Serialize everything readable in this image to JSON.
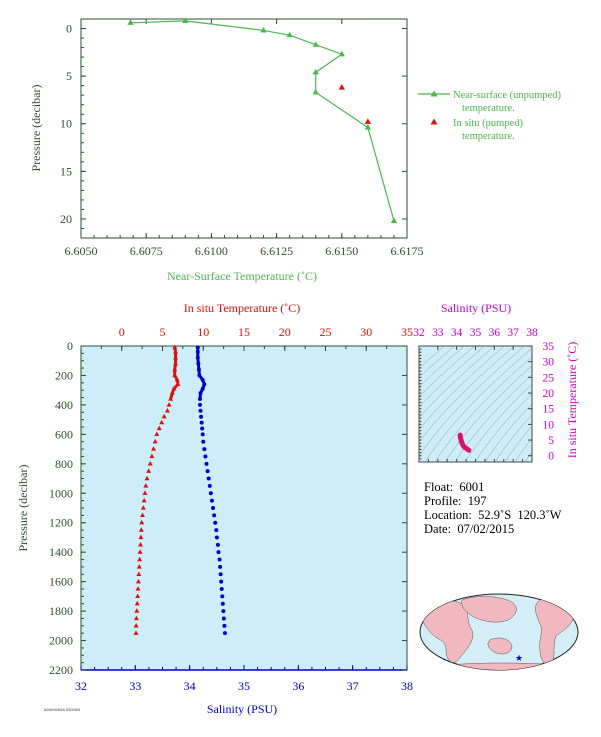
{
  "colors": {
    "near_surface": "#4cb84c",
    "in_situ_temp": "#e01010",
    "salinity": "#0000cc",
    "salinity_axis": "#cc00cc",
    "profile_bg": "#cdeef8",
    "axis_text": "#2f4f2f"
  },
  "chart_data": [
    {
      "type": "line",
      "xlabel": "Near-Surface Temperature (˚C)",
      "ylabel": "Pressure (decibar)",
      "xlim": [
        6.605,
        6.6175
      ],
      "ylim": [
        22,
        -1
      ],
      "x_ticks": [
        "6.6050",
        "6.6075",
        "6.6100",
        "6.6125",
        "6.6150",
        "6.6175"
      ],
      "y_ticks": [
        "0",
        "5",
        "10",
        "15",
        "20"
      ],
      "series": [
        {
          "name": "Near-surface (unpumped) temperature.",
          "marker": "triangle",
          "points": [
            [
              6.6069,
              -0.6
            ],
            [
              6.609,
              -0.8
            ],
            [
              6.612,
              0.2
            ],
            [
              6.613,
              0.7
            ],
            [
              6.614,
              1.7
            ],
            [
              6.615,
              2.7
            ],
            [
              6.614,
              4.6
            ],
            [
              6.614,
              6.7
            ],
            [
              6.616,
              10.4
            ],
            [
              6.617,
              20.2
            ]
          ]
        },
        {
          "name": "In situ (pumped) temperature.",
          "marker": "triangle",
          "points": [
            [
              6.615,
              6.2
            ],
            [
              6.616,
              9.8
            ]
          ]
        }
      ],
      "legend": [
        {
          "line1": "Near-surface (unpumped)",
          "line2": "temperature."
        },
        {
          "line1": "In situ (pumped)",
          "line2": "temperature."
        }
      ]
    },
    {
      "type": "scatter",
      "top_axis_label": "In situ Temperature (˚C)",
      "bottom_axis_label": "Salinity (PSU)",
      "ylabel": "Pressure (decibar)",
      "temp_lim": [
        -5,
        35
      ],
      "sal_lim": [
        32,
        38
      ],
      "ylim": [
        2200,
        0
      ],
      "temp_ticks": [
        "0",
        "5",
        "10",
        "15",
        "20",
        "25",
        "30",
        "35"
      ],
      "sal_ticks": [
        "32",
        "33",
        "34",
        "35",
        "36",
        "37",
        "38"
      ],
      "y_ticks": [
        "0",
        "200",
        "400",
        "600",
        "800",
        "1000",
        "1200",
        "1400",
        "1600",
        "1800",
        "2000",
        "2200"
      ],
      "temperature_profile": [
        [
          6.5,
          10
        ],
        [
          6.6,
          40
        ],
        [
          6.6,
          80
        ],
        [
          6.6,
          120
        ],
        [
          6.5,
          160
        ],
        [
          6.5,
          200
        ],
        [
          6.8,
          230
        ],
        [
          6.9,
          260
        ],
        [
          6.4,
          290
        ],
        [
          6.2,
          320
        ],
        [
          6.0,
          360
        ],
        [
          5.8,
          400
        ],
        [
          5.6,
          440
        ],
        [
          5.2,
          480
        ],
        [
          4.9,
          520
        ],
        [
          4.6,
          560
        ],
        [
          4.3,
          600
        ],
        [
          4.1,
          650
        ],
        [
          3.9,
          700
        ],
        [
          3.7,
          750
        ],
        [
          3.5,
          800
        ],
        [
          3.3,
          850
        ],
        [
          3.1,
          900
        ],
        [
          2.95,
          950
        ],
        [
          2.85,
          1000
        ],
        [
          2.75,
          1050
        ],
        [
          2.65,
          1100
        ],
        [
          2.55,
          1150
        ],
        [
          2.45,
          1200
        ],
        [
          2.4,
          1250
        ],
        [
          2.35,
          1300
        ],
        [
          2.3,
          1350
        ],
        [
          2.25,
          1400
        ],
        [
          2.2,
          1450
        ],
        [
          2.15,
          1500
        ],
        [
          2.1,
          1550
        ],
        [
          2.05,
          1600
        ],
        [
          2.0,
          1650
        ],
        [
          1.95,
          1700
        ],
        [
          1.9,
          1750
        ],
        [
          1.85,
          1800
        ],
        [
          1.8,
          1850
        ],
        [
          1.77,
          1900
        ],
        [
          1.75,
          1950
        ]
      ],
      "salinity_profile": [
        [
          34.15,
          10
        ],
        [
          34.15,
          40
        ],
        [
          34.15,
          80
        ],
        [
          34.16,
          120
        ],
        [
          34.17,
          160
        ],
        [
          34.18,
          200
        ],
        [
          34.24,
          230
        ],
        [
          34.27,
          260
        ],
        [
          34.24,
          290
        ],
        [
          34.2,
          320
        ],
        [
          34.19,
          360
        ],
        [
          34.19,
          400
        ],
        [
          34.2,
          440
        ],
        [
          34.21,
          480
        ],
        [
          34.22,
          520
        ],
        [
          34.23,
          560
        ],
        [
          34.24,
          600
        ],
        [
          34.25,
          650
        ],
        [
          34.27,
          700
        ],
        [
          34.29,
          750
        ],
        [
          34.31,
          800
        ],
        [
          34.33,
          850
        ],
        [
          34.35,
          900
        ],
        [
          34.37,
          950
        ],
        [
          34.39,
          1000
        ],
        [
          34.41,
          1050
        ],
        [
          34.43,
          1100
        ],
        [
          34.45,
          1150
        ],
        [
          34.47,
          1200
        ],
        [
          34.49,
          1250
        ],
        [
          34.5,
          1300
        ],
        [
          34.52,
          1350
        ],
        [
          34.53,
          1400
        ],
        [
          34.55,
          1450
        ],
        [
          34.56,
          1500
        ],
        [
          34.57,
          1550
        ],
        [
          34.58,
          1600
        ],
        [
          34.59,
          1650
        ],
        [
          34.6,
          1700
        ],
        [
          34.61,
          1750
        ],
        [
          34.62,
          1800
        ],
        [
          34.63,
          1850
        ],
        [
          34.64,
          1900
        ],
        [
          34.65,
          1950
        ]
      ]
    },
    {
      "type": "scatter",
      "top_axis_label": "Salinity (PSU)",
      "right_axis_label": "In situ Temperature (˚C)",
      "sal_lim": [
        32,
        38
      ],
      "temp_lim": [
        -2,
        35
      ],
      "sal_ticks": [
        "32",
        "33",
        "34",
        "35",
        "36",
        "37",
        "38"
      ],
      "temp_ticks": [
        "0",
        "5",
        "10",
        "15",
        "20",
        "25",
        "30",
        "35"
      ],
      "ts_points": [
        [
          34.19,
          6.6
        ],
        [
          34.18,
          6.3
        ],
        [
          34.2,
          5.8
        ],
        [
          34.25,
          4.6
        ],
        [
          34.3,
          3.8
        ],
        [
          34.35,
          3.2
        ],
        [
          34.42,
          2.7
        ],
        [
          34.5,
          2.4
        ],
        [
          34.56,
          2.1
        ],
        [
          34.62,
          1.9
        ],
        [
          34.65,
          1.75
        ],
        [
          34.17,
          6.8
        ],
        [
          34.22,
          5.2
        ],
        [
          34.28,
          4.2
        ]
      ]
    }
  ],
  "float_info": {
    "float": "Float:  6001",
    "profile": "Profile:  197",
    "location": "Location:  52.9˚S  120.3˚W",
    "date": "Date:  07/02/2015"
  },
  "footer_note": "A0000000A 00000/0"
}
